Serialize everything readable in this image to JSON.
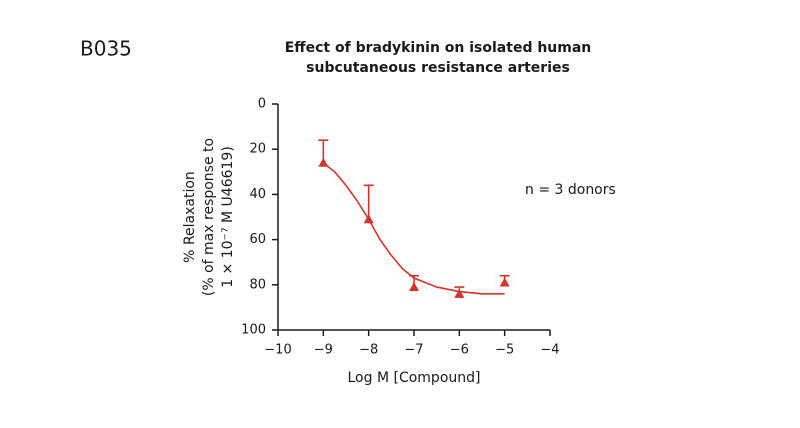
{
  "chart_data": {
    "type": "scatter",
    "panel_label": "B035",
    "title": [
      "Effect of bradykinin on isolated human",
      "subcutaneous resistance arteries"
    ],
    "xlabel": "Log M [Compound]",
    "ylabel": [
      "% Relaxation",
      "(% of max response to",
      "1 × 10⁻⁷ M U46619)"
    ],
    "annotation": "n = 3 donors",
    "xlim": [
      -10,
      -4
    ],
    "xticks": [
      {
        "value": -10,
        "label": "−10"
      },
      {
        "value": -9,
        "label": "−9"
      },
      {
        "value": -8,
        "label": "−8"
      },
      {
        "value": -7,
        "label": "−7"
      },
      {
        "value": -6,
        "label": "−6"
      },
      {
        "value": -5,
        "label": "−5"
      },
      {
        "value": -4,
        "label": "−4"
      }
    ],
    "ylim": [
      0,
      100
    ],
    "y_inverted": true,
    "yticks": [
      0,
      20,
      40,
      60,
      80,
      100
    ],
    "color": "#d9322a",
    "series": [
      {
        "x": [
          -9,
          -8,
          -7,
          -6,
          -5
        ],
        "values": [
          26,
          51,
          81,
          84,
          79
        ],
        "errors": [
          10,
          15,
          5,
          3,
          3
        ]
      }
    ],
    "fit": {
      "x": [
        -9,
        -8.75,
        -8.5,
        -8.25,
        -8,
        -7.75,
        -7.5,
        -7.25,
        -7,
        -6.5,
        -6,
        -5.5,
        -5
      ],
      "values": [
        26,
        30,
        36,
        43,
        51,
        60,
        67,
        73,
        77,
        81,
        83,
        84,
        84
      ]
    }
  }
}
